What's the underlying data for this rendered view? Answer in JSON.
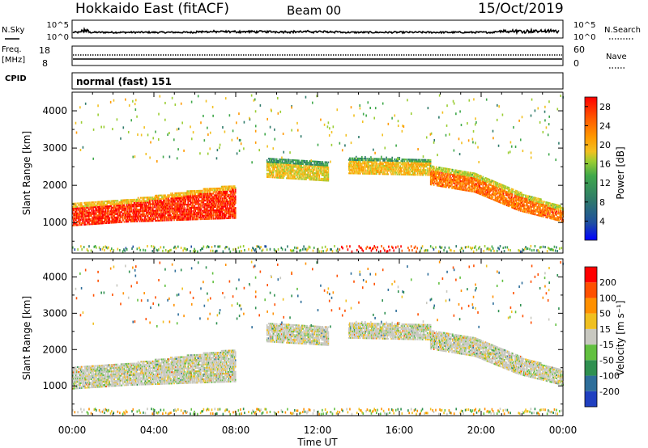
{
  "header": {
    "title": "Hokkaido East (fitACF)",
    "beam": "Beam 00",
    "date": "15/Oct/2019"
  },
  "noise_panel": {
    "left_label": "N.Sky",
    "right_label": "N.Search",
    "left_ticks": [
      "10^5",
      "10^0"
    ],
    "right_ticks": [
      "10^5",
      "10^0"
    ]
  },
  "freq_panel": {
    "left_label_1": "Freq.",
    "left_label_2": "[MHz]",
    "left_ticks": [
      "18",
      "8"
    ],
    "right_label": "Nave",
    "right_ticks": [
      "60",
      "0"
    ],
    "cpid_label": "CPID"
  },
  "cpid_panel": {
    "mode_text": "normal (fast) 151"
  },
  "power_panel": {
    "ylabel": "Slant Range [km]",
    "yticks": [
      "4000",
      "3000",
      "2000",
      "1000"
    ],
    "colorbar_label": "Power [dB]",
    "colorbar_ticks": [
      "28",
      "24",
      "20",
      "16",
      "12",
      "8",
      "4"
    ],
    "colors": [
      "#0000ff",
      "#1f4fa0",
      "#2f7a6a",
      "#3fa84a",
      "#9acd32",
      "#f2c020",
      "#ff9900",
      "#ff5a00",
      "#ff0000"
    ]
  },
  "velocity_panel": {
    "ylabel": "Slant Range [km]",
    "yticks": [
      "4000",
      "3000",
      "2000",
      "1000"
    ],
    "colorbar_label": "Velocity [m s⁻¹]",
    "colorbar_ticks": [
      "200",
      "100",
      "50",
      "15",
      "-15",
      "-50",
      "-100",
      "-200"
    ],
    "colors": [
      "#2040c0",
      "#2e6e9a",
      "#2f9050",
      "#62c040",
      "#c8c8c0",
      "#f0c020",
      "#ff9000",
      "#ff5000",
      "#ff0000"
    ]
  },
  "xaxis": {
    "label": "Time UT",
    "ticks": [
      "00:00",
      "04:00",
      "08:00",
      "12:00",
      "16:00",
      "20:00",
      "00:00"
    ]
  },
  "chart_data": {
    "type": "heatmap",
    "x_range_hours": [
      0,
      24
    ],
    "y_range_km": [
      180,
      4500
    ],
    "power_scale_db": [
      0,
      30
    ],
    "velocity_scale_ms": [
      -250,
      250
    ],
    "power_bands": [
      {
        "t0": 0.0,
        "t1": 8.0,
        "r_lo": [
          900,
          1000,
          1050,
          1100
        ],
        "r_hi": [
          1500,
          1600,
          1800,
          2000
        ],
        "db": 27
      },
      {
        "t0": 9.5,
        "t1": 12.5,
        "r_lo": [
          2200,
          2100
        ],
        "r_hi": [
          2700,
          2600
        ],
        "db": 18
      },
      {
        "t0": 13.5,
        "t1": 17.5,
        "r_lo": [
          2300,
          2250
        ],
        "r_hi": [
          2750,
          2700
        ],
        "db": 19
      },
      {
        "t0": 17.5,
        "t1": 24.0,
        "r_lo": [
          2000,
          1800,
          1300,
          1000
        ],
        "r_hi": [
          2500,
          2300,
          1800,
          1400
        ],
        "db": 24
      }
    ],
    "ground_scatter_km": [
      200,
      350
    ],
    "velocity_dominant_ms": 0
  }
}
